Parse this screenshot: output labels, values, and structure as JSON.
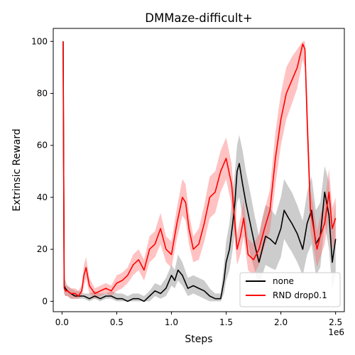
{
  "chart_data": {
    "type": "line",
    "title": "DMMaze-difficult+",
    "xlabel": "Steps",
    "ylabel": "Extrinsic Reward",
    "x_offset_label": "1e6",
    "xlim": [
      -0.08,
      2.58
    ],
    "ylim": [
      -4,
      105
    ],
    "xticks": [
      0.0,
      0.5,
      1.0,
      1.5,
      2.0,
      2.5
    ],
    "xtick_labels": [
      "0.0",
      "0.5",
      "1.0",
      "1.5",
      "2.0",
      "2.5"
    ],
    "yticks": [
      0,
      20,
      40,
      60,
      80,
      100
    ],
    "ytick_labels": [
      "0",
      "20",
      "40",
      "60",
      "80",
      "100"
    ],
    "grid": false,
    "legend_position": "bottom-right",
    "series": [
      {
        "name": "none",
        "color": "#000000",
        "band_color": "#808080",
        "x": [
          0.01,
          0.02,
          0.03,
          0.05,
          0.08,
          0.12,
          0.15,
          0.2,
          0.25,
          0.3,
          0.35,
          0.4,
          0.45,
          0.5,
          0.55,
          0.6,
          0.65,
          0.7,
          0.75,
          0.8,
          0.85,
          0.9,
          0.95,
          1.0,
          1.03,
          1.06,
          1.1,
          1.15,
          1.2,
          1.25,
          1.3,
          1.35,
          1.4,
          1.45,
          1.48,
          1.5,
          1.53,
          1.56,
          1.58,
          1.6,
          1.62,
          1.65,
          1.68,
          1.72,
          1.76,
          1.8,
          1.83,
          1.86,
          1.9,
          1.95,
          2.0,
          2.03,
          2.07,
          2.1,
          2.15,
          2.2,
          2.24,
          2.28,
          2.32,
          2.36,
          2.4,
          2.44,
          2.47,
          2.5
        ],
        "values": [
          100,
          6,
          5,
          4,
          3,
          2,
          2,
          2,
          1,
          2,
          1,
          2,
          2,
          1,
          1,
          0,
          1,
          1,
          0,
          2,
          4,
          3,
          5,
          10,
          8,
          12,
          10,
          5,
          6,
          5,
          4,
          2,
          1,
          1,
          8,
          15,
          20,
          30,
          38,
          50,
          53,
          45,
          38,
          30,
          22,
          15,
          20,
          25,
          24,
          22,
          28,
          35,
          32,
          30,
          26,
          20,
          30,
          35,
          22,
          25,
          42,
          33,
          15,
          24
        ],
        "lower": [
          95,
          3,
          2,
          2,
          1,
          1,
          1,
          1,
          0,
          1,
          0,
          1,
          1,
          0,
          0,
          0,
          0,
          0,
          0,
          0,
          2,
          1,
          2,
          6,
          5,
          8,
          6,
          2,
          3,
          2,
          1,
          0,
          0,
          0,
          3,
          8,
          12,
          20,
          27,
          38,
          40,
          32,
          25,
          18,
          12,
          6,
          10,
          14,
          13,
          12,
          17,
          24,
          21,
          19,
          15,
          10,
          18,
          22,
          10,
          13,
          30,
          20,
          5,
          10
        ],
        "upper": [
          100,
          9,
          8,
          6,
          5,
          4,
          4,
          3,
          3,
          4,
          3,
          3,
          4,
          3,
          3,
          2,
          3,
          3,
          2,
          4,
          7,
          6,
          9,
          14,
          12,
          18,
          15,
          9,
          10,
          9,
          8,
          5,
          3,
          3,
          14,
          23,
          30,
          42,
          50,
          60,
          64,
          58,
          50,
          42,
          33,
          25,
          32,
          37,
          36,
          33,
          40,
          47,
          44,
          42,
          37,
          31,
          42,
          48,
          35,
          38,
          52,
          46,
          28,
          38
        ]
      },
      {
        "name": "RND drop0.1",
        "color": "#ff0000",
        "band_color": "#ff6666",
        "x": [
          0.01,
          0.02,
          0.03,
          0.05,
          0.08,
          0.12,
          0.15,
          0.18,
          0.2,
          0.22,
          0.25,
          0.3,
          0.35,
          0.4,
          0.45,
          0.5,
          0.55,
          0.6,
          0.65,
          0.7,
          0.75,
          0.8,
          0.85,
          0.9,
          0.95,
          1.0,
          1.05,
          1.1,
          1.13,
          1.16,
          1.2,
          1.25,
          1.3,
          1.35,
          1.4,
          1.45,
          1.5,
          1.55,
          1.58,
          1.6,
          1.63,
          1.66,
          1.7,
          1.75,
          1.8,
          1.85,
          1.9,
          1.95,
          2.0,
          2.05,
          2.1,
          2.15,
          2.2,
          2.22,
          2.24,
          2.27,
          2.3,
          2.33,
          2.36,
          2.4,
          2.44,
          2.47,
          2.5
        ],
        "values": [
          100,
          5,
          4,
          4,
          3,
          3,
          2,
          4,
          10,
          13,
          6,
          3,
          4,
          5,
          4,
          7,
          8,
          10,
          14,
          16,
          12,
          20,
          22,
          28,
          20,
          18,
          30,
          40,
          38,
          28,
          20,
          22,
          30,
          40,
          42,
          50,
          55,
          45,
          30,
          20,
          25,
          32,
          18,
          16,
          20,
          28,
          35,
          55,
          70,
          80,
          85,
          90,
          99,
          97,
          70,
          35,
          28,
          20,
          25,
          30,
          42,
          28,
          32
        ],
        "lower": [
          95,
          3,
          2,
          2,
          1,
          1,
          1,
          2,
          6,
          9,
          3,
          1,
          2,
          3,
          2,
          4,
          5,
          7,
          10,
          12,
          8,
          15,
          17,
          22,
          15,
          13,
          24,
          33,
          31,
          22,
          15,
          16,
          23,
          32,
          34,
          42,
          47,
          37,
          23,
          14,
          18,
          25,
          12,
          10,
          14,
          21,
          27,
          45,
          60,
          70,
          76,
          82,
          93,
          90,
          60,
          27,
          20,
          13,
          17,
          22,
          33,
          20,
          24
        ],
        "upper": [
          100,
          7,
          6,
          6,
          5,
          5,
          4,
          6,
          14,
          17,
          9,
          5,
          6,
          7,
          6,
          10,
          11,
          13,
          18,
          20,
          16,
          25,
          27,
          34,
          25,
          23,
          36,
          47,
          45,
          34,
          25,
          28,
          37,
          48,
          50,
          58,
          63,
          53,
          37,
          26,
          32,
          39,
          24,
          22,
          26,
          35,
          43,
          65,
          80,
          90,
          94,
          97,
          100,
          100,
          80,
          43,
          36,
          27,
          33,
          38,
          51,
          36,
          40
        ]
      }
    ]
  }
}
